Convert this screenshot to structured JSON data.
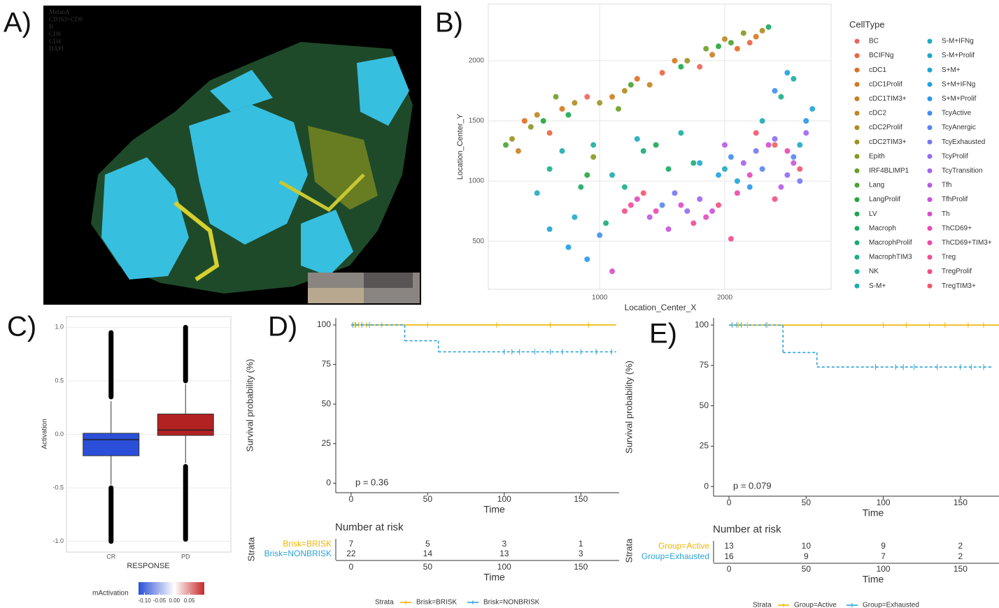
{
  "chart_data": [
    {
      "type": "image",
      "label": "A)",
      "channels": [
        {
          "name": "MelanA",
          "color": "#3ec8f0"
        },
        {
          "name": "CD163+CD6",
          "color": "#f2e23a"
        },
        {
          "name": "B",
          "color": "#e0e0a0"
        },
        {
          "name": "CD8",
          "color": "#e83030"
        },
        {
          "name": "CD4",
          "color": "#3cc040"
        },
        {
          "name": "DAPI",
          "color": "#3050e0"
        }
      ]
    },
    {
      "type": "scatter",
      "label": "B)",
      "xlabel": "Location_Center_X",
      "ylabel": "Location_Center_Y",
      "xlim": [
        110,
        2850
      ],
      "ylim": [
        100,
        2470
      ],
      "xticks": [
        1000,
        2000
      ],
      "yticks": [
        500,
        1000,
        1500,
        2000
      ],
      "grid": true,
      "legend_title": "CellType",
      "series": [
        {
          "name": "BC",
          "color": "#f0605a",
          "x": [
            900,
            1800,
            2400
          ],
          "y": [
            1700,
            1950,
            1300
          ]
        },
        {
          "name": "BCIFNg",
          "color": "#eb6440",
          "x": [
            600,
            1500,
            2200
          ],
          "y": [
            1400,
            1900,
            2150
          ]
        },
        {
          "name": "cDC1",
          "color": "#e26c1e",
          "x": [
            400,
            1300,
            2100
          ],
          "y": [
            1500,
            1850,
            2100
          ]
        },
        {
          "name": "cDC1Prolif",
          "color": "#d8761a",
          "x": [
            700,
            1600,
            2250
          ],
          "y": [
            1600,
            2000,
            2200
          ]
        },
        {
          "name": "cDC1TIM3+",
          "color": "#cc7e1e",
          "x": [
            350,
            1100,
            1900
          ],
          "y": [
            1250,
            1700,
            2050
          ]
        },
        {
          "name": "cDC2",
          "color": "#be861e",
          "x": [
            500,
            1400,
            2000
          ],
          "y": [
            1550,
            1800,
            2180
          ]
        },
        {
          "name": "cDC2Prolif",
          "color": "#ae8c1e",
          "x": [
            800,
            1200,
            2300
          ],
          "y": [
            1650,
            1750,
            2250
          ]
        },
        {
          "name": "cDC2TIM3+",
          "color": "#9c9220",
          "x": [
            300,
            1000,
            1700
          ],
          "y": [
            1350,
            1650,
            2000
          ]
        },
        {
          "name": "Epith",
          "color": "#869822",
          "x": [
            450,
            950,
            2150
          ],
          "y": [
            1450,
            1200,
            2230
          ]
        },
        {
          "name": "IRF4BLIMP1",
          "color": "#6c9e26",
          "x": [
            650,
            1150,
            1850
          ],
          "y": [
            1700,
            1600,
            2100
          ]
        },
        {
          "name": "Lang",
          "color": "#4aa22e",
          "x": [
            250,
            1250,
            2050
          ],
          "y": [
            1300,
            1800,
            2150
          ]
        },
        {
          "name": "LangProlif",
          "color": "#24a63a",
          "x": [
            550,
            900,
            1950
          ],
          "y": [
            1500,
            1050,
            2120
          ]
        },
        {
          "name": "LV",
          "color": "#1aa84e",
          "x": [
            750,
            1450,
            1650
          ],
          "y": [
            1550,
            1300,
            1950
          ]
        },
        {
          "name": "Macroph",
          "color": "#1aaa62",
          "x": [
            850,
            1550,
            2350
          ],
          "y": [
            950,
            1100,
            2280
          ]
        },
        {
          "name": "MacrophProlif",
          "color": "#1aac76",
          "x": [
            1050,
            1350,
            1750
          ],
          "y": [
            650,
            1250,
            1150
          ]
        },
        {
          "name": "MacrophTIM3",
          "color": "#1aae8a",
          "x": [
            600,
            1200,
            2450
          ],
          "y": [
            1100,
            950,
            1700
          ]
        },
        {
          "name": "NK",
          "color": "#1aae9e",
          "x": [
            950,
            1650,
            2550
          ],
          "y": [
            1300,
            1400,
            1850
          ]
        },
        {
          "name": "S-M+",
          "color": "#1cacb0",
          "x": [
            700,
            1100,
            2300
          ],
          "y": [
            1250,
            1050,
            1500
          ]
        },
        {
          "name": "S-M+IFNg",
          "color": "#1eaabe",
          "x": [
            500,
            1300,
            2000
          ],
          "y": [
            900,
            1350,
            1100
          ]
        },
        {
          "name": "S-M+Prolif",
          "color": "#1ea8cc",
          "x": [
            800,
            1800,
            2600
          ],
          "y": [
            700,
            1150,
            1300
          ]
        },
        {
          "name": "S+M+",
          "color": "#1ea4d8",
          "x": [
            600,
            2100,
            2700
          ],
          "y": [
            600,
            1000,
            1600
          ]
        },
        {
          "name": "S+M+IFNg",
          "color": "#20a0e2",
          "x": [
            750,
            1950,
            2500
          ],
          "y": [
            450,
            1050,
            1900
          ]
        },
        {
          "name": "S+M+Prolif",
          "color": "#2a98ea",
          "x": [
            900,
            2200,
            2650
          ],
          "y": [
            350,
            950,
            1500
          ]
        },
        {
          "name": "TcyActive",
          "color": "#3e8ef0",
          "x": [
            1000,
            2050,
            2400
          ],
          "y": [
            550,
            1200,
            1750
          ]
        },
        {
          "name": "TcyAnergic",
          "color": "#5884f4",
          "x": [
            1500,
            2300,
            2550
          ],
          "y": [
            800,
            1100,
            1200
          ]
        },
        {
          "name": "TcyExhausted",
          "color": "#7478f4",
          "x": [
            1600,
            2250,
            2600
          ],
          "y": [
            900,
            1250,
            1000
          ]
        },
        {
          "name": "TcyProlif",
          "color": "#8e6cf2",
          "x": [
            1700,
            2400,
            2500
          ],
          "y": [
            750,
            1350,
            1050
          ]
        },
        {
          "name": "TcyTransition",
          "color": "#a462ee",
          "x": [
            1800,
            2150,
            2650
          ],
          "y": [
            850,
            1150,
            1400
          ]
        },
        {
          "name": "Tfh",
          "color": "#b85ae6",
          "x": [
            1400,
            2000,
            2450
          ],
          "y": [
            700,
            1300,
            950
          ]
        },
        {
          "name": "TfhProlif",
          "color": "#ca52dc",
          "x": [
            1550,
            1900,
            2550
          ],
          "y": [
            600,
            750,
            1150
          ]
        },
        {
          "name": "Th",
          "color": "#d84ccc",
          "x": [
            1100,
            1650,
            2350
          ],
          "y": [
            250,
            800,
            1300
          ]
        },
        {
          "name": "ThCD69+",
          "color": "#e448bc",
          "x": [
            1300,
            1850,
            2200
          ],
          "y": [
            850,
            700,
            1050
          ]
        },
        {
          "name": "ThCD69+TIM3+",
          "color": "#ec48a8",
          "x": [
            1450,
            2100,
            2500
          ],
          "y": [
            750,
            900,
            1250
          ]
        },
        {
          "name": "Treg",
          "color": "#f24a94",
          "x": [
            1250,
            1750,
            2050
          ],
          "y": [
            800,
            650,
            520
          ]
        },
        {
          "name": "TregProlif",
          "color": "#f44e80",
          "x": [
            1200,
            1950,
            2400
          ],
          "y": [
            750,
            800,
            850
          ]
        },
        {
          "name": "TregTIM3+",
          "color": "#f4546c",
          "x": [
            1350,
            2250,
            2600
          ],
          "y": [
            900,
            1400,
            1100
          ]
        }
      ]
    },
    {
      "type": "box",
      "label": "C)",
      "categories": [
        "CR",
        "PD"
      ],
      "ylabel": "Activation",
      "xlabel": "RESPONSE",
      "ylim": [
        -1.1,
        1.1
      ],
      "grid": true,
      "yticks": [
        {
          "value": -1,
          "label": "-1.0"
        },
        {
          "value": -0.5,
          "label": "-0.5"
        },
        {
          "value": 0,
          "label": "0.0"
        },
        {
          "value": 0.5,
          "label": "0.5"
        },
        {
          "value": 1,
          "label": "1.0"
        }
      ],
      "series": [
        {
          "color": "#2b4fd8",
          "min": -0.47,
          "q1": -0.2,
          "median": -0.05,
          "q3": 0.01,
          "max": 0.31,
          "outliers_low": [
            -1.0,
            -0.5
          ],
          "outliers_high": [
            0.35,
            0.95
          ]
        },
        {
          "color": "#b22222",
          "min": -0.27,
          "q1": -0.01,
          "median": 0.04,
          "q3": 0.19,
          "max": 0.47,
          "outliers_low": [
            -0.98,
            -0.3
          ],
          "outliers_high": [
            0.5,
            1.0
          ]
        }
      ],
      "colorbar": {
        "title": "mActivation",
        "lim": [
          -0.12,
          0.1
        ],
        "colors": [
          "#2b4fd8",
          "#ffffff",
          "#c62828"
        ],
        "ticks": [
          {
            "value": -0.1,
            "label": "-0.10"
          },
          {
            "value": -0.05,
            "label": "-0.05"
          },
          {
            "value": 0,
            "label": "0.00"
          },
          {
            "value": 0.05,
            "label": "0.05"
          }
        ]
      }
    },
    {
      "type": "survival",
      "label": "D)",
      "ylabel": "Survival probability (%)",
      "xlabel": "Time",
      "xlim": [
        -10,
        175
      ],
      "ylim": [
        -6,
        104.4
      ],
      "xticks": [
        0,
        50,
        100,
        150
      ],
      "yticks": [
        0,
        25,
        50,
        75,
        100
      ],
      "pvalue": "p = 0.36",
      "risk_title": "Number at risk",
      "strata_label": "Strata",
      "series": [
        {
          "name": "Brisk=BRISK",
          "color": "#f0b400",
          "dashed": false,
          "x": [
            0,
            173
          ],
          "values": [
            100,
            100
          ],
          "censor_x": [
            2,
            5,
            10,
            20,
            50,
            95,
            130,
            155
          ],
          "at_risk": [
            7,
            5,
            3,
            1
          ]
        },
        {
          "name": "Brisk=NONBRISK",
          "color": "#2aa3d8",
          "dashed": true,
          "x": [
            0,
            35,
            57,
            173
          ],
          "values": [
            100,
            90,
            83,
            83
          ],
          "censor_x": [
            1,
            3,
            7,
            12,
            100,
            105,
            110,
            120,
            130,
            138,
            150,
            160,
            170
          ],
          "at_risk": [
            22,
            14,
            13,
            3
          ]
        }
      ]
    },
    {
      "type": "survival",
      "label": "E)",
      "ylabel": "Survival probability (%)",
      "xlabel": "Time",
      "xlim": [
        -10,
        175
      ],
      "ylim": [
        -6,
        104.4
      ],
      "xticks": [
        0,
        50,
        100,
        150
      ],
      "yticks": [
        0,
        25,
        50,
        75,
        100
      ],
      "pvalue": "p = 0.079",
      "risk_title": "Number at risk",
      "strata_label": "Strata",
      "series": [
        {
          "name": "Group=Active",
          "color": "#f0b400",
          "dashed": false,
          "x": [
            0,
            175
          ],
          "values": [
            100,
            100
          ],
          "censor_x": [
            2,
            6,
            12,
            25,
            60,
            100,
            115,
            130,
            140,
            155,
            165
          ],
          "at_risk": [
            13,
            10,
            9,
            2
          ]
        },
        {
          "name": "Group=Exhausted",
          "color": "#2aa3d8",
          "dashed": true,
          "x": [
            0,
            35,
            57,
            170
          ],
          "values": [
            100,
            83,
            74,
            74
          ],
          "censor_x": [
            2,
            5,
            8,
            24,
            95,
            108,
            113,
            120,
            135,
            150,
            157,
            165
          ],
          "at_risk": [
            16,
            9,
            7,
            2
          ]
        }
      ]
    }
  ]
}
